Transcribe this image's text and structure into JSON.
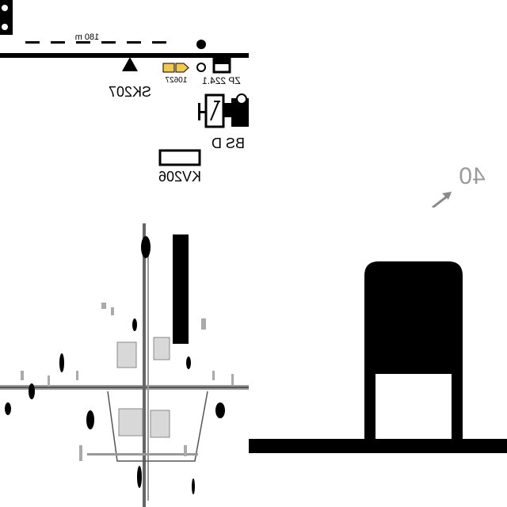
{
  "colors": {
    "line": "#000000",
    "signal_fill": "#f2c94c",
    "grey": "#9a9a9a",
    "bg": "#ffffff"
  },
  "top_left": {
    "distance_label": "180 m",
    "sk_label": "SK207",
    "km_label": "10627",
    "zp_label": "ZP 224.1",
    "bs_label": "BS D",
    "kv_label": "KV206"
  },
  "top_right": {
    "number_label": "40"
  }
}
